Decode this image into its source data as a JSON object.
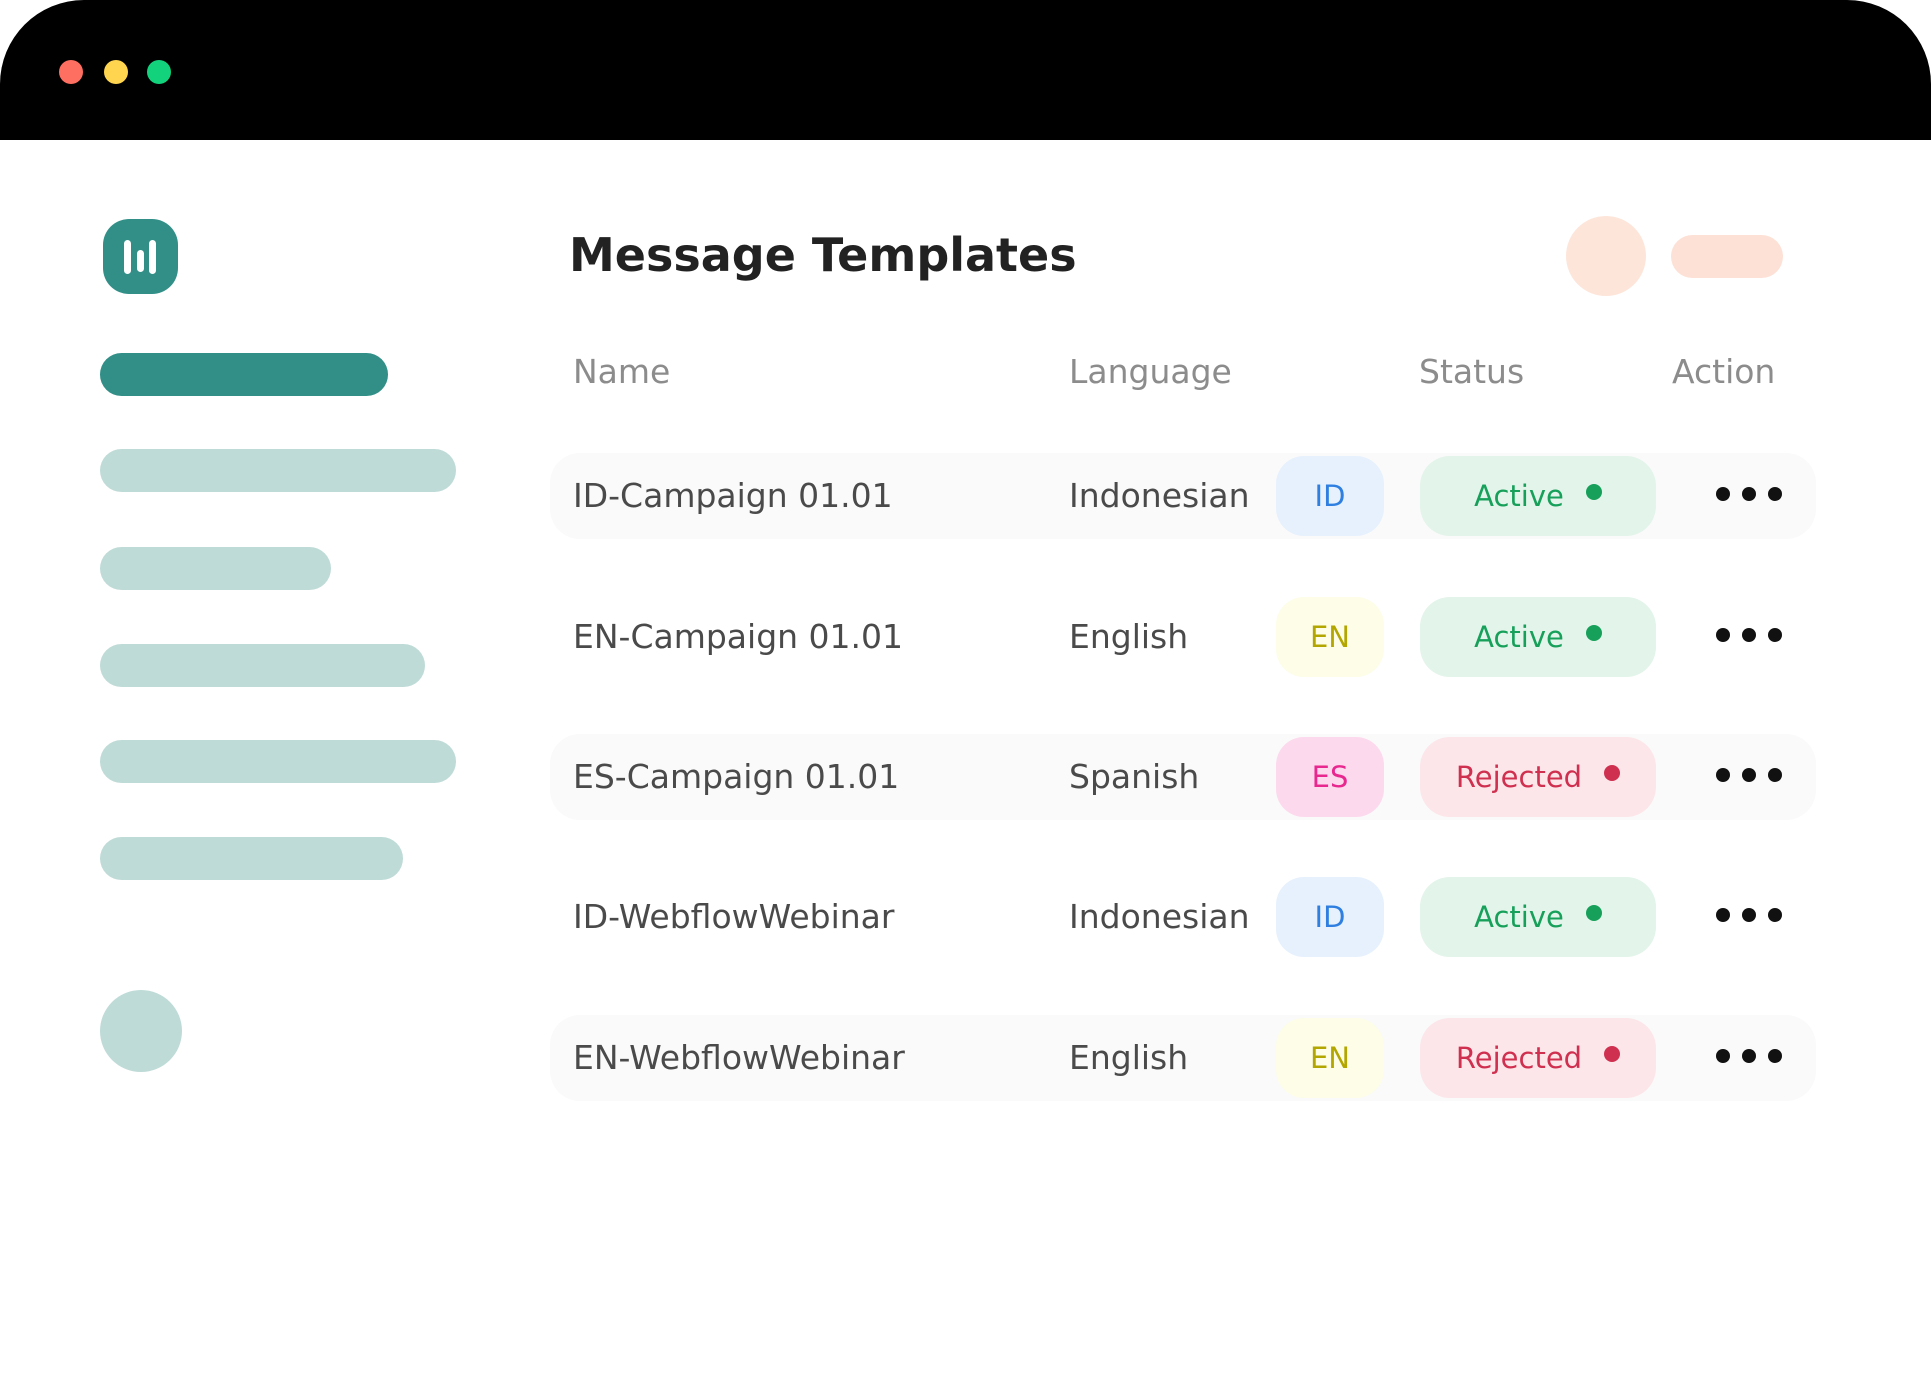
{
  "window": {
    "controls": [
      {
        "name": "close",
        "color": "#ff6f61"
      },
      {
        "name": "minimize",
        "color": "#ffd54f"
      },
      {
        "name": "maximize",
        "color": "#12d37c"
      }
    ]
  },
  "brand": {
    "accent": "#318f88",
    "placeholder_color": "#bfdbd7"
  },
  "page": {
    "title": "Message Templates"
  },
  "table": {
    "headers": {
      "name": "Name",
      "language": "Language",
      "status": "Status",
      "action": "Action"
    },
    "rows": [
      {
        "name": "ID-Campaign 01.01",
        "language": "Indonesian",
        "code": "ID",
        "status": "Active"
      },
      {
        "name": "EN-Campaign 01.01",
        "language": "English",
        "code": "EN",
        "status": "Active"
      },
      {
        "name": "ES-Campaign 01.01",
        "language": "Spanish",
        "code": "ES",
        "status": "Rejected"
      },
      {
        "name": "ID-WebflowWebinar",
        "language": "Indonesian",
        "code": "ID",
        "status": "Active"
      },
      {
        "name": "EN-WebflowWebinar",
        "language": "English",
        "code": "EN",
        "status": "Rejected"
      }
    ]
  },
  "colors": {
    "ID": {
      "bg": "#e6f1fd",
      "fg": "#2f7fe0"
    },
    "EN": {
      "bg": "#fdfde8",
      "fg": "#b3a600"
    },
    "ES": {
      "bg": "#fdd9ee",
      "fg": "#e8288f"
    },
    "Active": {
      "bg": "#e3f4ea",
      "fg": "#17a05a"
    },
    "Rejected": {
      "bg": "#fce6ea",
      "fg": "#d0304f"
    }
  }
}
